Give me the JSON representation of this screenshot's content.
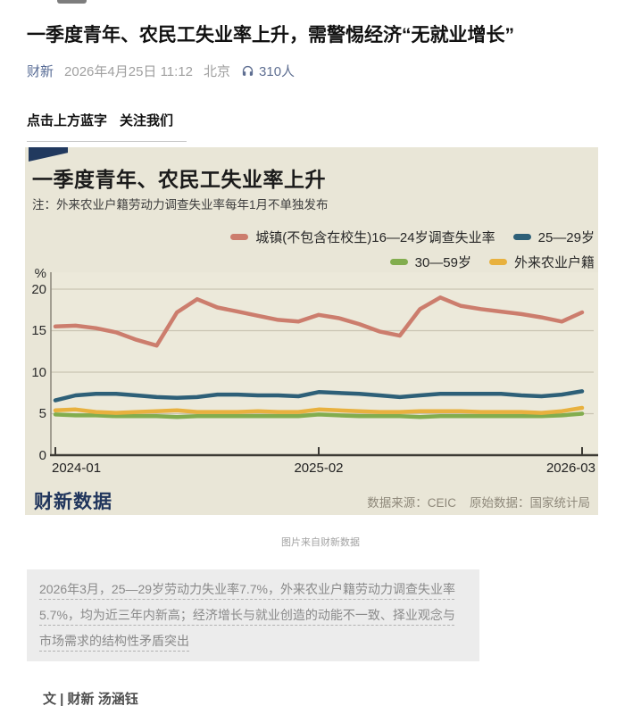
{
  "page": {
    "title": "一季度青年、农民工失业率上升，需警惕经济“无就业增长”",
    "byline": {
      "account": "财新",
      "date": "2026年4月25日 11:12",
      "location": "北京",
      "listen_count": "310人",
      "listen_icon": "headphones-icon"
    },
    "cta": {
      "left": "点击上方蓝字",
      "right": "关注我们"
    },
    "image_caption": "图片来自财新数据",
    "summary": "2026年3月，25—29岁劳动力失业率7.7%，外来农业户籍劳动力调查失业率5.7%，均为近三年内新高；经济增长与就业创造的动能不一致、择业观念与市场需求的结构性矛盾突出",
    "author_line": "文 | 财新 汤涵钰"
  },
  "chart_data": {
    "type": "line",
    "title": "一季度青年、农民工失业率上升",
    "note": "注：外来农业户籍劳动力调查失业率每年1月不单独发布",
    "logo": "财新数据",
    "sources": [
      "数据来源：CEIC",
      "原始数据：国家统计局"
    ],
    "unit_label": "%",
    "grid": "horizontal",
    "legend_position": "top-right, two rows",
    "ylim": [
      0,
      21
    ],
    "yticks": [
      0,
      5,
      10,
      15,
      20
    ],
    "ytick_labels": [
      "0",
      "5",
      "10",
      "15",
      "20"
    ],
    "xtick_idx": [
      0,
      13,
      26
    ],
    "xtick_labels": [
      "2024-01",
      "2025-02",
      "2026-03"
    ],
    "legend_rows": [
      [
        0,
        1
      ],
      [
        2,
        3
      ]
    ],
    "categories": [
      "2024-01",
      "2024-02",
      "2024-03",
      "2024-04",
      "2024-05",
      "2024-06",
      "2024-07",
      "2024-08",
      "2024-09",
      "2024-10",
      "2024-11",
      "2024-12",
      "2025-01",
      "2025-02",
      "2025-03",
      "2025-04",
      "2025-05",
      "2025-06",
      "2025-07",
      "2025-08",
      "2025-09",
      "2025-10",
      "2025-11",
      "2025-12",
      "2026-01",
      "2026-02",
      "2026-03"
    ],
    "series": [
      {
        "name": "城镇(不包含在校生)16—24岁调查失业率",
        "color": "#cc7d6d",
        "values": [
          15.5,
          15.6,
          15.3,
          14.8,
          13.9,
          13.2,
          17.2,
          18.8,
          17.8,
          17.3,
          16.8,
          16.3,
          16.1,
          16.9,
          16.5,
          15.8,
          14.9,
          14.4,
          17.6,
          19.0,
          18.0,
          17.6,
          17.3,
          17.0,
          16.6,
          16.1,
          17.2
        ]
      },
      {
        "name": "25—29岁",
        "color": "#2e6078",
        "values": [
          6.6,
          7.2,
          7.4,
          7.4,
          7.2,
          7.0,
          6.9,
          7.0,
          7.3,
          7.3,
          7.2,
          7.2,
          7.1,
          7.6,
          7.5,
          7.4,
          7.2,
          7.0,
          7.2,
          7.4,
          7.4,
          7.4,
          7.4,
          7.2,
          7.1,
          7.3,
          7.7
        ]
      },
      {
        "name": "30—59岁",
        "color": "#82ad4e",
        "values": [
          4.9,
          4.8,
          4.8,
          4.7,
          4.7,
          4.7,
          4.6,
          4.7,
          4.7,
          4.7,
          4.7,
          4.7,
          4.7,
          4.9,
          4.8,
          4.7,
          4.7,
          4.7,
          4.6,
          4.7,
          4.7,
          4.7,
          4.7,
          4.7,
          4.7,
          4.8,
          5.0
        ]
      },
      {
        "name": "外来农业户籍",
        "color": "#e8b13e",
        "values": [
          5.4,
          5.5,
          5.2,
          5.1,
          5.2,
          5.3,
          5.4,
          5.2,
          5.2,
          5.2,
          5.3,
          5.2,
          5.2,
          5.5,
          5.4,
          5.3,
          5.2,
          5.2,
          5.3,
          5.3,
          5.3,
          5.2,
          5.2,
          5.2,
          5.1,
          5.3,
          5.7
        ]
      }
    ]
  }
}
